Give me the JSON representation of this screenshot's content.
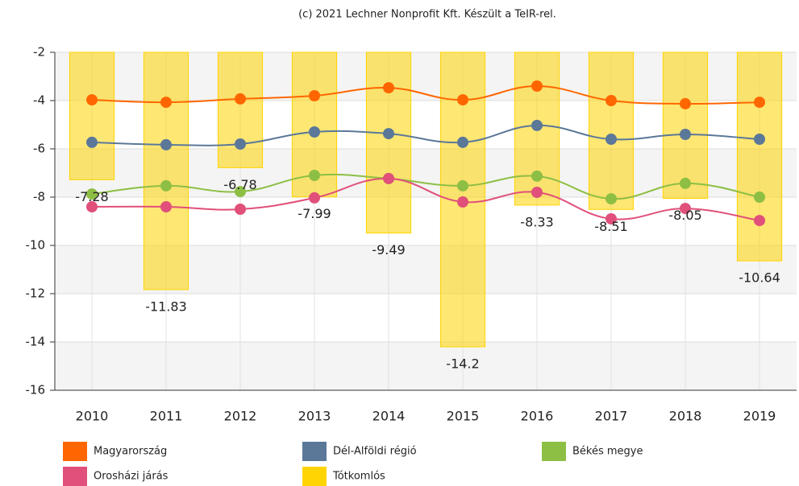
{
  "chart_data": {
    "type": "combo",
    "title": "(c) 2021 Lechner Nonprofit Kft. Készült a TeIR-rel.",
    "categories": [
      "2010",
      "2011",
      "2012",
      "2013",
      "2014",
      "2015",
      "2016",
      "2017",
      "2018",
      "2019"
    ],
    "ylim": [
      -16,
      -2
    ],
    "yticks": [
      -16,
      -14,
      -12,
      -10,
      -8,
      -6,
      -4,
      -2
    ],
    "grid": true,
    "series": [
      {
        "name": "Tótkomlós",
        "type": "bar",
        "color": "#ffd400",
        "values": [
          -7.28,
          -11.83,
          -6.78,
          -7.99,
          -9.49,
          -14.2,
          -8.33,
          -8.51,
          -8.05,
          -10.64
        ]
      },
      {
        "name": "Magyarország",
        "type": "line",
        "color": "#ff6600",
        "values": [
          -3.97,
          -4.07,
          -3.93,
          -3.8,
          -3.47,
          -3.97,
          -3.4,
          -4.0,
          -4.13,
          -4.07
        ]
      },
      {
        "name": "Dél-Alföldi régió",
        "type": "line",
        "color": "#5b7899",
        "values": [
          -5.73,
          -5.83,
          -5.8,
          -5.3,
          -5.37,
          -5.73,
          -5.03,
          -5.6,
          -5.4,
          -5.6
        ]
      },
      {
        "name": "Békés megye",
        "type": "line",
        "color": "#8dbf44",
        "values": [
          -7.87,
          -7.53,
          -7.77,
          -7.1,
          -7.23,
          -7.53,
          -7.13,
          -8.07,
          -7.43,
          -8.0
        ]
      },
      {
        "name": "Orosházi járás",
        "type": "line",
        "color": "#e0507a",
        "values": [
          -8.4,
          -8.4,
          -8.5,
          -8.03,
          -7.23,
          -8.2,
          -7.8,
          -8.9,
          -8.47,
          -8.97
        ]
      }
    ],
    "legend_order": [
      1,
      2,
      3,
      4,
      0
    ]
  }
}
